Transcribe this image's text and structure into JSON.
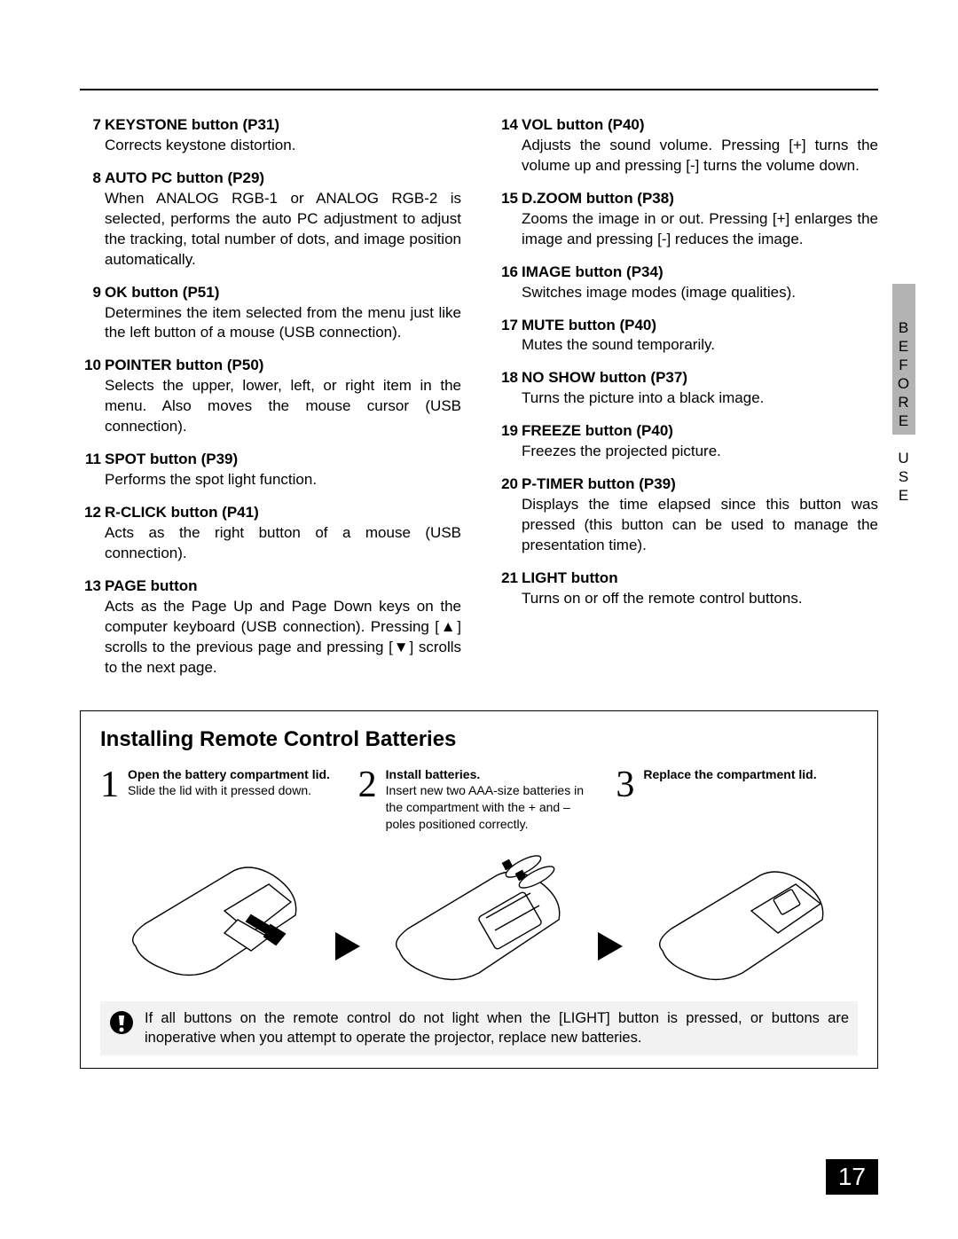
{
  "sideTab": "BEFORE USE",
  "leftItems": [
    {
      "num": "7",
      "title": "KEYSTONE button (P31)",
      "body": "Corrects keystone distortion."
    },
    {
      "num": "8",
      "title": "AUTO PC button (P29)",
      "body": "When ANALOG RGB-1 or ANALOG RGB-2 is selected, performs the auto PC adjustment to adjust the tracking, total number of dots, and image position automatically."
    },
    {
      "num": "9",
      "title": "OK button (P51)",
      "body": "Determines the item selected from the menu just like the left button of a mouse (USB connection)."
    },
    {
      "num": "10",
      "title": "POINTER button (P50)",
      "body": "Selects the upper, lower, left, or right item in the menu. Also moves the mouse cursor (USB connection)."
    },
    {
      "num": "11",
      "title": "SPOT button (P39)",
      "body": "Performs the spot light function."
    },
    {
      "num": "12",
      "title": "R-CLICK button (P41)",
      "body": "Acts as the right button of a mouse (USB connection)."
    },
    {
      "num": "13",
      "title": "PAGE button",
      "body": "Acts as the Page Up and Page Down keys on the computer keyboard (USB connection). Pressing [▲] scrolls to the previous page and pressing [▼] scrolls to the next page."
    }
  ],
  "rightItems": [
    {
      "num": "14",
      "title": "VOL button (P40)",
      "body": "Adjusts the sound volume. Pressing [+] turns the volume up and pressing [-] turns the volume down."
    },
    {
      "num": "15",
      "title": "D.ZOOM button (P38)",
      "body": "Zooms the image in or out. Pressing [+] enlarges the image and pressing [-] reduces the image."
    },
    {
      "num": "16",
      "title": "IMAGE button (P34)",
      "body": "Switches image modes (image qualities)."
    },
    {
      "num": "17",
      "title": "MUTE button (P40)",
      "body": "Mutes the sound temporarily."
    },
    {
      "num": "18",
      "title": "NO SHOW button (P37)",
      "body": "Turns the picture into a black image."
    },
    {
      "num": "19",
      "title": "FREEZE button (P40)",
      "body": "Freezes the projected picture."
    },
    {
      "num": "20",
      "title": "P-TIMER button (P39)",
      "body": "Displays the time elapsed since this button was pressed (this button can be used to manage the presentation time)."
    },
    {
      "num": "21",
      "title": "LIGHT button",
      "body": "Turns on or off the remote control buttons."
    }
  ],
  "box": {
    "title": "Installing Remote Control Batteries",
    "steps": [
      {
        "num": "1",
        "bold": "Open the battery compartment lid.",
        "rest": "Slide the lid with it pressed down."
      },
      {
        "num": "2",
        "bold": "Install batteries.",
        "rest": "Insert new two AAA-size batteries in the compartment with the + and – poles positioned correctly."
      },
      {
        "num": "3",
        "bold": "Replace the compartment lid.",
        "rest": ""
      }
    ],
    "note": "If all buttons on the remote control do not light when the [LIGHT] button is pressed, or buttons are inoperative when you attempt to operate the projector, replace new batteries."
  },
  "pageNumber": "17",
  "colors": {
    "tab": "#b3b3b3",
    "noteBg": "#f2f2f2",
    "text": "#000000",
    "pageBg": "#000000",
    "pageFg": "#ffffff"
  }
}
